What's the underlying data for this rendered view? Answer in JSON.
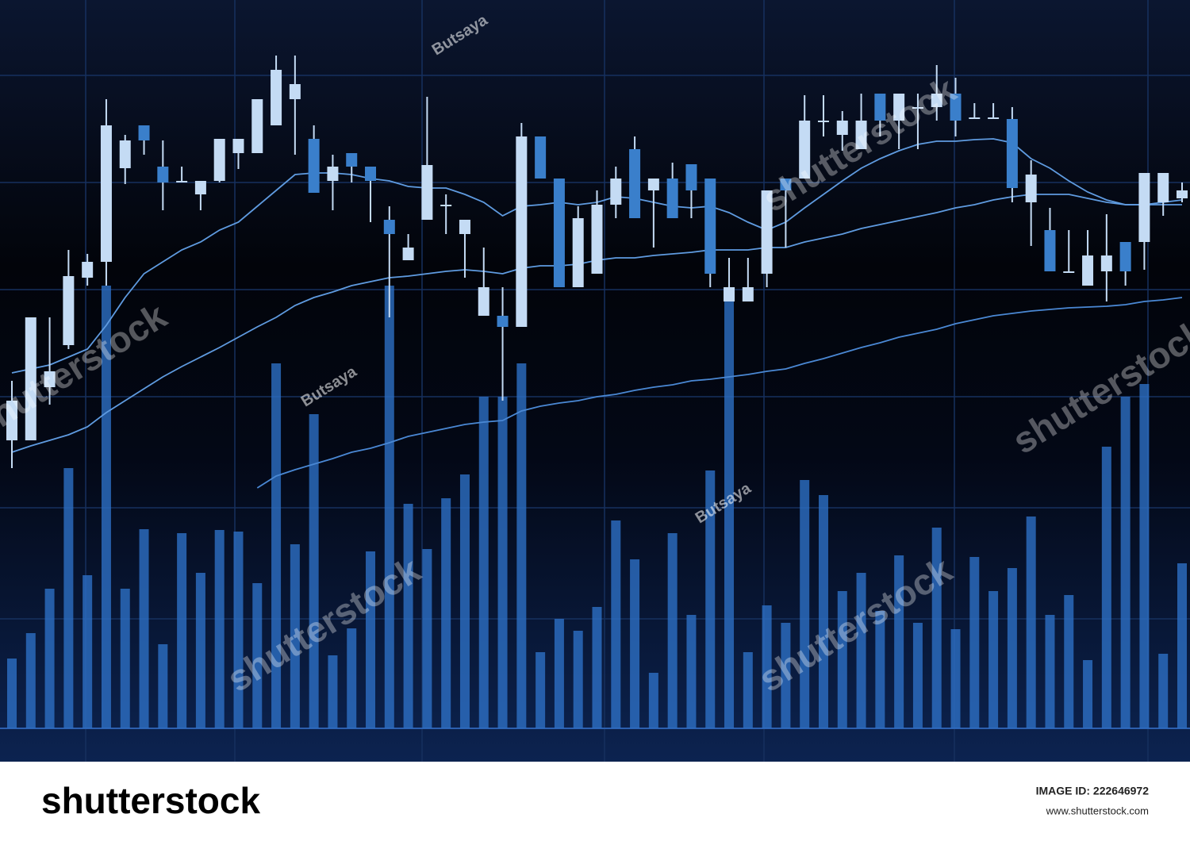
{
  "chart_data": {
    "type": "candlestick",
    "categories": [
      null,
      null,
      null,
      null,
      null,
      null,
      null,
      null,
      null,
      null,
      null,
      null,
      null,
      null,
      null,
      null,
      null,
      null,
      null,
      null,
      null,
      null,
      null,
      null,
      null,
      null,
      null,
      null,
      null,
      null,
      null,
      null,
      null,
      null,
      null,
      null,
      null,
      null,
      null,
      null,
      null,
      null,
      null,
      null,
      null,
      null,
      null,
      null,
      null,
      null,
      null,
      null,
      null,
      null,
      null,
      null,
      null,
      null,
      null,
      null,
      null,
      null,
      null
    ],
    "open": [
      445,
      445,
      512,
      565,
      650,
      670,
      788,
      842,
      790,
      772,
      755,
      772,
      807,
      807,
      842,
      875,
      825,
      772,
      807,
      790,
      723,
      672,
      723,
      742,
      705,
      602,
      602,
      588,
      828,
      775,
      638,
      655,
      742,
      812,
      760,
      775,
      793,
      775,
      620,
      620,
      655,
      775,
      775,
      848,
      830,
      812,
      882,
      848,
      865,
      865,
      882,
      852,
      852,
      850,
      745,
      710,
      658,
      640,
      658,
      695,
      695,
      745,
      750
    ],
    "high": [
      520,
      600,
      600,
      685,
      680,
      875,
      830,
      842,
      823,
      790,
      772,
      825,
      825,
      875,
      930,
      930,
      842,
      805,
      807,
      790,
      740,
      705,
      878,
      755,
      723,
      688,
      638,
      845,
      828,
      775,
      740,
      760,
      790,
      828,
      775,
      795,
      793,
      775,
      675,
      675,
      760,
      775,
      880,
      880,
      860,
      882,
      882,
      882,
      882,
      918,
      902,
      870,
      870,
      865,
      798,
      738,
      710,
      710,
      730,
      695,
      782,
      782,
      770
    ],
    "low": [
      410,
      445,
      490,
      560,
      640,
      640,
      768,
      805,
      735,
      770,
      735,
      770,
      787,
      807,
      842,
      805,
      757,
      735,
      770,
      720,
      600,
      672,
      723,
      705,
      650,
      602,
      495,
      588,
      775,
      638,
      638,
      655,
      725,
      725,
      688,
      725,
      725,
      638,
      620,
      620,
      638,
      688,
      775,
      828,
      810,
      812,
      828,
      812,
      812,
      848,
      828,
      852,
      852,
      745,
      690,
      658,
      658,
      640,
      620,
      640,
      660,
      728,
      745
    ],
    "close": [
      495,
      600,
      532,
      652,
      670,
      842,
      823,
      823,
      770,
      772,
      772,
      825,
      825,
      875,
      912,
      894,
      757,
      790,
      790,
      772,
      705,
      688,
      792,
      742,
      723,
      638,
      588,
      828,
      775,
      638,
      725,
      742,
      775,
      725,
      775,
      725,
      760,
      655,
      638,
      638,
      760,
      760,
      848,
      848,
      848,
      848,
      848,
      882,
      865,
      882,
      848,
      852,
      852,
      763,
      780,
      658,
      658,
      678,
      678,
      658,
      782,
      782,
      760
    ],
    "up_color": "#c4dbf4",
    "down_color": "#3a7fcb",
    "ylim": [
      40,
      1000
    ],
    "y2lim": [
      0,
      918
    ],
    "series": [
      {
        "color": "#5f9be0",
        "values": [
          530,
          535,
          540,
          550,
          560,
          590,
          625,
          655,
          670,
          685,
          695,
          710,
          720,
          740,
          760,
          780,
          782,
          782,
          780,
          775,
          772,
          765,
          763,
          763,
          755,
          745,
          728,
          740,
          742,
          745,
          742,
          745,
          752,
          750,
          745,
          740,
          738,
          740,
          732,
          720,
          710,
          720,
          738,
          755,
          772,
          788,
          800,
          810,
          818,
          822,
          822,
          824,
          825,
          820,
          800,
          788,
          772,
          758,
          748,
          742,
          742,
          745,
          748
        ]
      },
      {
        "color": "#5f9be0",
        "values": [
          430,
          438,
          445,
          452,
          462,
          480,
          495,
          510,
          525,
          538,
          550,
          562,
          575,
          588,
          600,
          615,
          625,
          632,
          640,
          645,
          650,
          652,
          655,
          658,
          660,
          658,
          655,
          662,
          665,
          665,
          667,
          672,
          675,
          675,
          678,
          680,
          682,
          685,
          685,
          685,
          688,
          688,
          695,
          700,
          705,
          712,
          717,
          722,
          727,
          732,
          738,
          742,
          748,
          752,
          755,
          755,
          755,
          750,
          745,
          742,
          742,
          742,
          742
        ]
      },
      {
        "color": "#4a88d4",
        "values": [
          null,
          null,
          null,
          null,
          null,
          null,
          null,
          null,
          null,
          null,
          null,
          null,
          null,
          385,
          400,
          408,
          415,
          422,
          430,
          435,
          442,
          450,
          455,
          460,
          465,
          468,
          470,
          482,
          488,
          492,
          495,
          500,
          503,
          508,
          512,
          515,
          520,
          522,
          525,
          528,
          532,
          535,
          542,
          548,
          555,
          562,
          568,
          575,
          580,
          585,
          592,
          597,
          602,
          605,
          608,
          610,
          612,
          613,
          614,
          616,
          620,
          622,
          625
        ]
      },
      {
        "type": "bar",
        "axis": "y2",
        "color": "#2d6fc4",
        "values": [
          88,
          120,
          176,
          328,
          193,
          558,
          176,
          251,
          106,
          246,
          196,
          250,
          248,
          183,
          460,
          232,
          396,
          92,
          126,
          223,
          558,
          283,
          226,
          290,
          320,
          418,
          418,
          460,
          96,
          138,
          123,
          153,
          262,
          213,
          70,
          246,
          143,
          325,
          548,
          96,
          155,
          133,
          313,
          294,
          173,
          196,
          148,
          218,
          133,
          253,
          125,
          216,
          173,
          202,
          267,
          143,
          168,
          86,
          355,
          418,
          434,
          94,
          208
        ]
      }
    ]
  },
  "watermarks": {
    "credit": "Butsaya",
    "brand": "shutterstock"
  },
  "footer": {
    "logo": "shutterstock",
    "image_id": "IMAGE ID: 222646972",
    "url": "www.shutterstock.com"
  }
}
